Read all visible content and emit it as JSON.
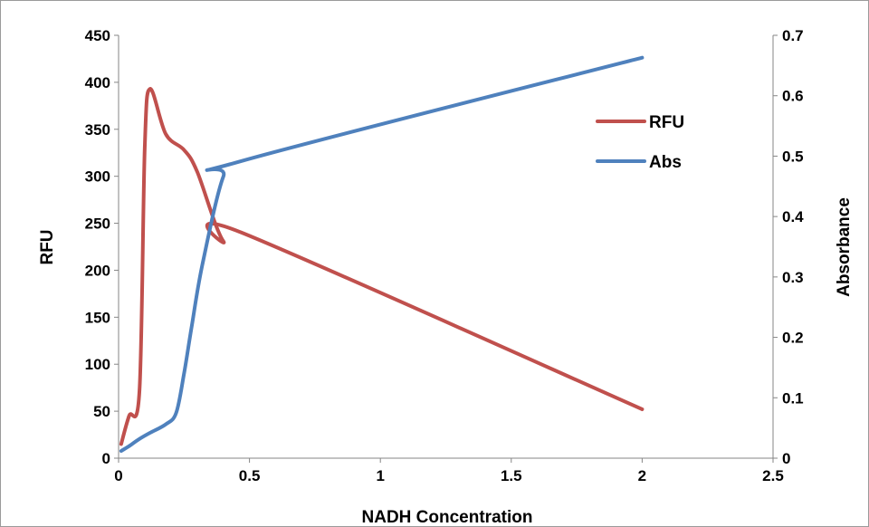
{
  "chart_data": {
    "type": "line",
    "title": "",
    "xlabel": "NADH Concentration",
    "ylabel": "RFU",
    "y2label": "Absorbance",
    "xlim": [
      0,
      2.5
    ],
    "ylim": [
      0,
      450
    ],
    "y2lim": [
      0,
      0.7
    ],
    "x_ticks": [
      "0",
      "0.5",
      "1",
      "1.5",
      "2",
      "2.5"
    ],
    "y_ticks": [
      "0",
      "50",
      "100",
      "150",
      "200",
      "250",
      "300",
      "350",
      "400",
      "450"
    ],
    "y2_ticks": [
      "0",
      "0.1",
      "0.2",
      "0.3",
      "0.4",
      "0.5",
      "0.6",
      "0.7"
    ],
    "grid": false,
    "legend_position": "upper-right",
    "series": [
      {
        "name": "RFU",
        "axis": "left",
        "color": "#C0504D",
        "x": [
          0.01,
          0.04,
          0.08,
          0.1,
          0.12,
          0.18,
          0.25,
          0.3,
          0.4,
          0.47,
          2.0
        ],
        "y": [
          15,
          45,
          72,
          330,
          393,
          345,
          328,
          305,
          231,
          240,
          52
        ]
      },
      {
        "name": "Abs",
        "axis": "right",
        "color": "#4F81BD",
        "x": [
          0.01,
          0.04,
          0.08,
          0.12,
          0.18,
          0.22,
          0.25,
          0.28,
          0.32,
          0.4,
          0.47,
          2.0
        ],
        "y": [
          0.012,
          0.02,
          0.032,
          0.042,
          0.056,
          0.075,
          0.14,
          0.22,
          0.32,
          0.466,
          0.492,
          0.663
        ]
      }
    ]
  }
}
